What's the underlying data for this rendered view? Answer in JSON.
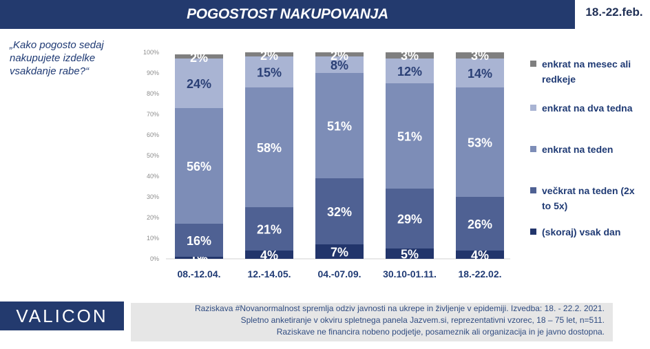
{
  "header": {
    "title": "POGOSTOST NAKUPOVANJA",
    "date_range": "18.-22.feb."
  },
  "question": "„Kako pogosto sedaj nakupujete izdelke vsakdanje rabe?“",
  "colors": {
    "brand_navy": "#233a6e",
    "label_blue": "#1f3a74",
    "series": [
      "#22356b",
      "#4f6193",
      "#7d8db7",
      "#a9b4d3",
      "#7f7f7f"
    ]
  },
  "chart_data": {
    "type": "bar",
    "stacked": true,
    "categories": [
      "08.-12.04.",
      "12.-14.05.",
      "04.-07.09.",
      "30.10-01.11.",
      "18.-22.02."
    ],
    "ylim": [
      0,
      100
    ],
    "yticks": [
      "0%",
      "10%",
      "20%",
      "30%",
      "40%",
      "50%",
      "60%",
      "70%",
      "80%",
      "90%",
      "100%"
    ],
    "series": [
      {
        "name": "(skoraj) vsak dan",
        "values": [
          1,
          4,
          7,
          5,
          4
        ],
        "labels": [
          "1%",
          "4%",
          "7%",
          "5%",
          "4%"
        ]
      },
      {
        "name": "večkrat na teden (2x to 5x)",
        "values": [
          16,
          21,
          32,
          29,
          26
        ],
        "labels": [
          "16%",
          "21%",
          "32%",
          "29%",
          "26%"
        ]
      },
      {
        "name": "enkrat na teden",
        "values": [
          56,
          58,
          51,
          51,
          53
        ],
        "labels": [
          "56%",
          "58%",
          "51%",
          "51%",
          "53%"
        ]
      },
      {
        "name": "enkrat na dva tedna",
        "values": [
          24,
          15,
          8,
          12,
          14
        ],
        "labels": [
          "24%",
          "15%",
          "8%",
          "12%",
          "14%"
        ]
      },
      {
        "name": "enkrat na mesec ali redkeje",
        "values": [
          2,
          2,
          2,
          3,
          3
        ],
        "labels": [
          "2%",
          "2%",
          "2%",
          "3%",
          "3%"
        ]
      }
    ],
    "legend_order": [
      "enkrat na mesec ali redkeje",
      "enkrat na dva tedna",
      "enkrat na teden",
      "večkrat na teden (2x to 5x)",
      "(skoraj) vsak dan"
    ],
    "legend_position": "right",
    "grid": false
  },
  "brand": {
    "name": "VALICON"
  },
  "footnote": {
    "lines": [
      "Raziskava #Novanormalnost spremlja odziv javnosti na ukrepe in življenje v epidemiji.  Izvedba: 18. - 22.2. 2021.",
      "Spletno anketiranje v okviru spletnega panela Jazvem.si, reprezentativni vzorec, 18 – 75 let, n=511.",
      "Raziskave ne financira nobeno podjetje, posameznik ali organizacija in je javno dostopna."
    ]
  }
}
